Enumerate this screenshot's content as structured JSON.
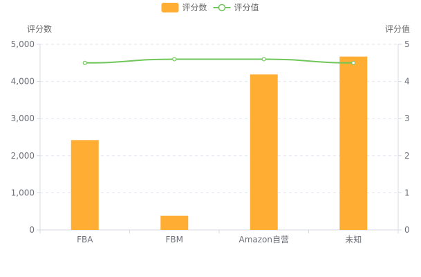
{
  "chart_data": {
    "type": "bar",
    "categories": [
      "FBA",
      "FBM",
      "Amazon自营",
      "未知"
    ],
    "series": [
      {
        "name": "评分数",
        "type": "bar",
        "axis": "left",
        "color": "#ffad33",
        "values": [
          2420,
          380,
          4190,
          4670
        ]
      },
      {
        "name": "评分值",
        "type": "line",
        "axis": "right",
        "color": "#70c65a",
        "values": [
          4.5,
          4.6,
          4.6,
          4.5
        ]
      }
    ],
    "y_left": {
      "label": "评分数",
      "min": 0,
      "max": 5000,
      "ticks": [
        "0",
        "1,000",
        "2,000",
        "3,000",
        "4,000",
        "5,000"
      ]
    },
    "y_right": {
      "label": "评分值",
      "min": 0,
      "max": 5,
      "ticks": [
        "0",
        "1",
        "2",
        "3",
        "4",
        "5"
      ]
    },
    "grid": "dashed-horizontal",
    "legend_position": "top-center"
  }
}
